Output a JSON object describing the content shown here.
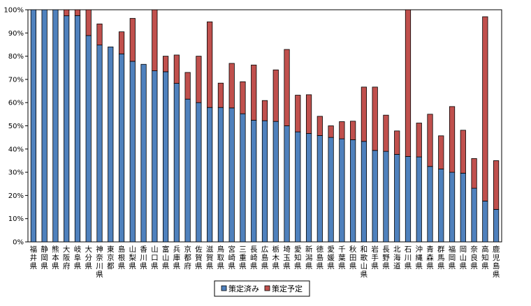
{
  "chart_data": {
    "type": "bar",
    "stacked": true,
    "categories": [
      "福井県",
      "静岡県",
      "熊本県",
      "大阪府",
      "岐阜県",
      "大分県",
      "神奈川県",
      "東京都",
      "島根県",
      "山梨県",
      "香川県",
      "山口県",
      "富山県",
      "兵庫県",
      "京都府",
      "佐賀県",
      "滋賀県",
      "鳥取県",
      "宮崎県",
      "三重県",
      "長崎県",
      "広島県",
      "栃木県",
      "埼玉県",
      "愛知県",
      "新潟県",
      "徳島県",
      "愛媛県",
      "千葉県",
      "秋田県",
      "和歌山県",
      "岩手県",
      "長野県",
      "北海道",
      "石川県",
      "沖縄県",
      "青森県",
      "群馬県",
      "福岡県",
      "岡山県",
      "奈良県",
      "高知県",
      "鹿児島県"
    ],
    "series": [
      {
        "name": "策定済み",
        "color": "#4f81bd",
        "values": [
          100,
          100,
          100,
          97.4,
          97.5,
          88.9,
          84.8,
          84.0,
          81.0,
          77.8,
          76.5,
          73.7,
          73.3,
          68.3,
          61.5,
          60.0,
          57.9,
          57.9,
          57.7,
          55.2,
          52.4,
          52.2,
          51.9,
          50.0,
          47.4,
          46.7,
          45.8,
          45.0,
          44.4,
          44.0,
          43.3,
          39.4,
          39.0,
          37.7,
          36.8,
          36.6,
          32.5,
          31.4,
          30.0,
          29.6,
          23.1,
          17.6,
          14.0
        ]
      },
      {
        "name": "策定予定",
        "color": "#c0504d",
        "values": [
          0,
          0,
          0,
          2.6,
          2.5,
          11.1,
          9.1,
          0,
          9.5,
          18.5,
          0,
          26.3,
          6.7,
          12.2,
          11.5,
          20.0,
          36.9,
          10.5,
          19.2,
          13.8,
          23.8,
          8.7,
          22.2,
          32.9,
          15.8,
          16.7,
          8.3,
          5.0,
          7.4,
          8.0,
          23.4,
          27.3,
          15.6,
          10.1,
          63.2,
          14.6,
          22.5,
          14.3,
          28.3,
          18.5,
          12.8,
          79.4,
          21.0
        ]
      }
    ],
    "ylim": [
      0,
      100
    ],
    "y_ticks": [
      "0%",
      "10%",
      "20%",
      "30%",
      "40%",
      "50%",
      "60%",
      "70%",
      "80%",
      "90%",
      "100%"
    ],
    "grid": false,
    "legend_position": "bottom",
    "title": "",
    "xlabel": "",
    "ylabel": ""
  }
}
